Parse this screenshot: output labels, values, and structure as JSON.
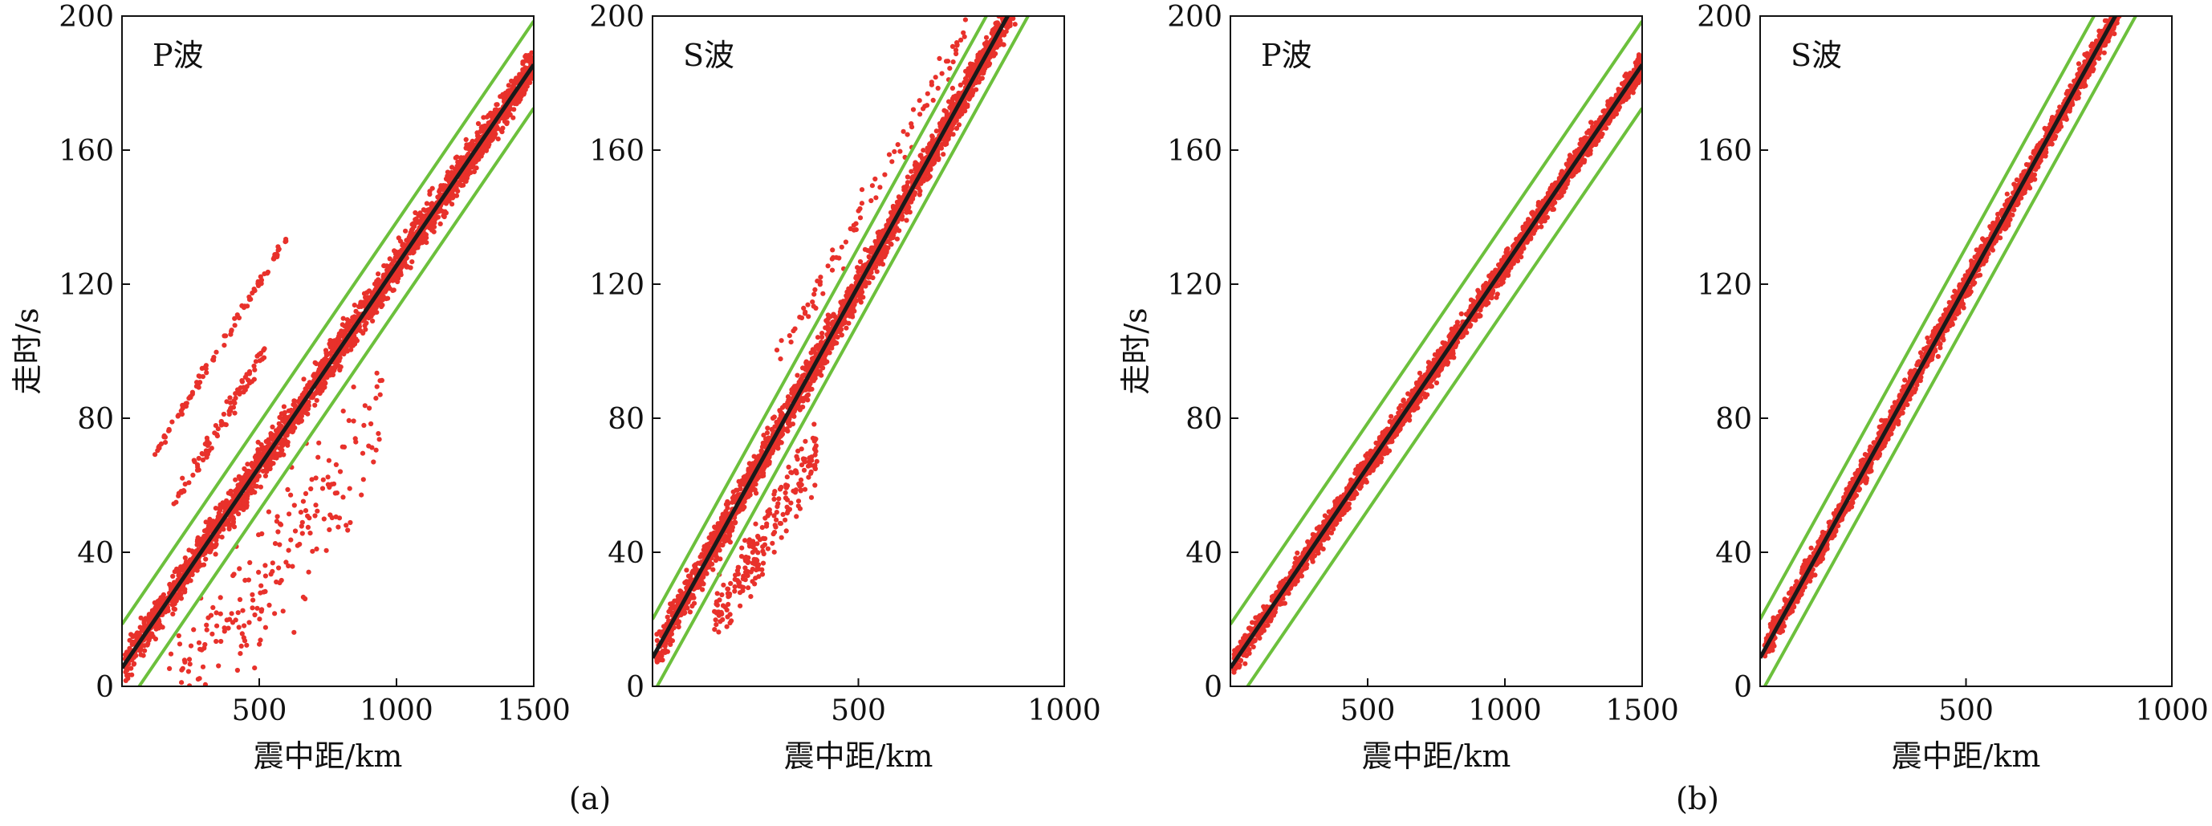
{
  "figure": {
    "captions": [
      "(a)",
      "(b)"
    ]
  },
  "chart_data": [
    {
      "type": "scatter",
      "panel_label": "P波",
      "xlabel": "震中距/km",
      "ylabel": "走时/s",
      "xlim": [
        0,
        1500
      ],
      "ylim": [
        0,
        200
      ],
      "xticks": [
        500,
        1000,
        1500
      ],
      "yticks": [
        0,
        40,
        80,
        120,
        160,
        200
      ],
      "colors": {
        "points": "#e8312b",
        "fit": "#1a1a1a",
        "bounds": "#6cc03c"
      },
      "fit_line": {
        "intercept": 5.5,
        "slope": 0.12
      },
      "bound_lines": [
        {
          "intercept": 18.5,
          "slope": 0.12
        },
        {
          "intercept": -7.5,
          "slope": 0.12
        }
      ],
      "main_cloud": {
        "x_range": [
          10,
          1500
        ],
        "intercept": 5.5,
        "slope": 0.12,
        "spread": 7
      },
      "outlier_groups": [
        {
          "x_range": [
            120,
            600
          ],
          "intercept": 53,
          "slope": 0.135,
          "spread": 2
        },
        {
          "x_range": [
            180,
            520
          ],
          "intercept": 28,
          "slope": 0.14,
          "spread": 4
        },
        {
          "x_range": [
            150,
            950
          ],
          "intercept": -25,
          "slope": 0.11,
          "spread": 25
        }
      ]
    },
    {
      "type": "scatter",
      "panel_label": "S波",
      "xlabel": "震中距/km",
      "ylabel": "",
      "xlim": [
        0,
        1000
      ],
      "ylim": [
        0,
        200
      ],
      "xticks": [
        500,
        1000
      ],
      "yticks": [
        0,
        40,
        80,
        120,
        160,
        200
      ],
      "colors": {
        "points": "#e8312b",
        "fit": "#1a1a1a",
        "bounds": "#6cc03c"
      },
      "fit_line": {
        "intercept": 8.5,
        "slope": 0.222
      },
      "bound_lines": [
        {
          "intercept": 20,
          "slope": 0.222
        },
        {
          "intercept": -2.5,
          "slope": 0.222
        }
      ],
      "main_cloud": {
        "x_range": [
          10,
          950
        ],
        "intercept": 8.5,
        "slope": 0.222,
        "spread": 7
      },
      "outlier_groups": [
        {
          "x_range": [
            300,
            760
          ],
          "intercept": 32,
          "slope": 0.215,
          "spread": 6
        },
        {
          "x_range": [
            150,
            400
          ],
          "intercept": -10,
          "slope": 0.2,
          "spread": 12
        }
      ]
    },
    {
      "type": "scatter",
      "panel_label": "P波",
      "xlabel": "震中距/km",
      "ylabel": "走时/s",
      "xlim": [
        0,
        1500
      ],
      "ylim": [
        0,
        200
      ],
      "xticks": [
        500,
        1000,
        1500
      ],
      "yticks": [
        0,
        40,
        80,
        120,
        160,
        200
      ],
      "colors": {
        "points": "#e8312b",
        "fit": "#1a1a1a",
        "bounds": "#6cc03c"
      },
      "fit_line": {
        "intercept": 5.5,
        "slope": 0.12
      },
      "bound_lines": [
        {
          "intercept": 18.5,
          "slope": 0.12
        },
        {
          "intercept": -7.5,
          "slope": 0.12
        }
      ],
      "main_cloud": {
        "x_range": [
          10,
          1500
        ],
        "intercept": 5.5,
        "slope": 0.12,
        "spread": 5
      },
      "outlier_groups": []
    },
    {
      "type": "scatter",
      "panel_label": "S波",
      "xlabel": "震中距/km",
      "ylabel": "",
      "xlim": [
        0,
        1000
      ],
      "ylim": [
        0,
        200
      ],
      "xticks": [
        500,
        1000
      ],
      "yticks": [
        0,
        40,
        80,
        120,
        160,
        200
      ],
      "colors": {
        "points": "#e8312b",
        "fit": "#1a1a1a",
        "bounds": "#6cc03c"
      },
      "fit_line": {
        "intercept": 8.5,
        "slope": 0.222
      },
      "bound_lines": [
        {
          "intercept": 20,
          "slope": 0.222
        },
        {
          "intercept": -2.5,
          "slope": 0.222
        }
      ],
      "main_cloud": {
        "x_range": [
          10,
          950
        ],
        "intercept": 8.5,
        "slope": 0.222,
        "spread": 5
      },
      "outlier_groups": []
    }
  ]
}
